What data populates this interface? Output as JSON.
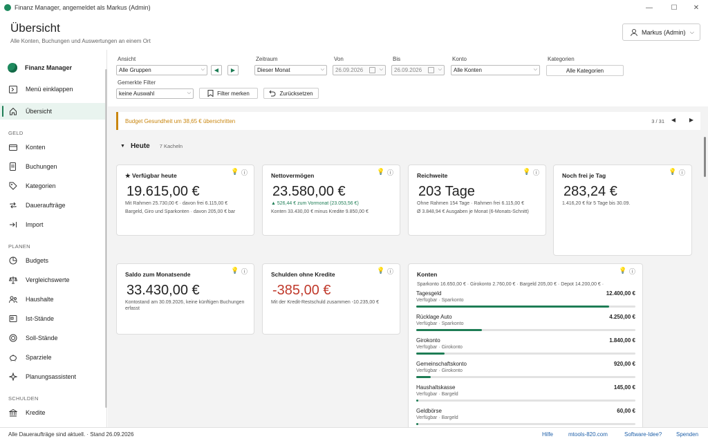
{
  "window": {
    "title": "Finanz Manager, angemeldet als Markus (Admin)"
  },
  "header": {
    "title": "Übersicht",
    "subtitle": "Alle Konten, Buchungen und Auswertungen an einem Ort",
    "user": "Markus (Admin)"
  },
  "sidebar": {
    "brand": "Finanz Manager",
    "collapse": "Menü einklappen",
    "overview": "Übersicht",
    "sections": {
      "geld": "GELD",
      "planen": "PLANEN",
      "schulden": "SCHULDEN"
    },
    "geld": [
      "Konten",
      "Buchungen",
      "Kategorien",
      "Daueraufträge",
      "Import"
    ],
    "planen": [
      "Budgets",
      "Vergleichswerte",
      "Haushalte",
      "Ist-Stände",
      "Soll-Stände",
      "Sparziele",
      "Planungsassistent"
    ],
    "schulden": [
      "Kredite"
    ]
  },
  "filters": {
    "ansicht_label": "Ansicht",
    "ansicht": "Alle Gruppen",
    "zeitraum_label": "Zeitraum",
    "zeitraum": "Dieser Monat",
    "von_label": "Von",
    "von": "26.09.2026",
    "bis_label": "Bis",
    "bis": "26.09.2026",
    "konto_label": "Konto",
    "konto": "Alle Konten",
    "kategorien_label": "Kategorien",
    "kategorien": "Alle Kategorien",
    "gemerkte_label": "Gemerkte Filter",
    "gemerkte": "keine Auswahl",
    "merken": "Filter merken",
    "reset": "Zurücksetzen"
  },
  "banner": {
    "text": "Budget Gesundheit um 38,65 € überschritten",
    "page": "3 / 31"
  },
  "section": {
    "title": "Heute",
    "count": "7 Kacheln"
  },
  "cards": {
    "verfuegbar": {
      "title": "★ Verfügbar heute",
      "value": "19.615,00 €",
      "line1": "Mit Rahmen 25.730,00 € · davon frei 6.115,00 €",
      "line2": "Bargeld, Giro und Sparkonten · davon 205,00 € bar"
    },
    "netto": {
      "title": "Nettovermögen",
      "value": "23.580,00 €",
      "line1": "▲ 526,44 € zum Vormonat (23.053,56 €)",
      "line2": "Konten 33.430,00 € minus Kredite 9.850,00 €"
    },
    "reichweite": {
      "title": "Reichweite",
      "value": "203 Tage",
      "line1": "Ohne Rahmen 154 Tage · Rahmen frei 6.115,00 €",
      "line2": "Ø 3.848,94 € Ausgaben je Monat (6-Monats-Schnitt)"
    },
    "frei": {
      "title": "Noch frei je Tag",
      "value": "283,24 €",
      "line1": "1.416,20 € für 5 Tage bis 30.09."
    },
    "saldo": {
      "title": "Saldo zum Monatsende",
      "value": "33.430,00 €",
      "line1": "Kontostand am 30.09.2026, keine künftigen Buchungen erfasst"
    },
    "schulden": {
      "title": "Schulden ohne Kredite",
      "value": "-385,00 €",
      "line1": "Mit der Kredit-Restschuld zusammen -10.235,00 €"
    },
    "konten": {
      "title": "Konten",
      "summary": "Sparkonto 16.650,00 € · Girokonto 2.760,00 € · Bargeld 205,00 € · Depot 14.200,00 € ·",
      "items": [
        {
          "name": "Tagesgeld",
          "sub": "Verfügbar · Sparkonto",
          "amount": "12.400,00 €",
          "share": 0.88
        },
        {
          "name": "Rücklage Auto",
          "sub": "Verfügbar · Sparkonto",
          "amount": "4.250,00 €",
          "share": 0.3
        },
        {
          "name": "Girokonto",
          "sub": "Verfügbar · Girokonto",
          "amount": "1.840,00 €",
          "share": 0.13
        },
        {
          "name": "Gemeinschaftskonto",
          "sub": "Verfügbar · Girokonto",
          "amount": "920,00 €",
          "share": 0.065
        },
        {
          "name": "Haushaltskasse",
          "sub": "Verfügbar · Bargeld",
          "amount": "145,00 €",
          "share": 0.01
        },
        {
          "name": "Geldbörse",
          "sub": "Verfügbar · Bargeld",
          "amount": "60,00 €",
          "share": 0.004
        }
      ]
    }
  },
  "status": {
    "text": "Alle Daueraufträge sind aktuell.  ·  Stand 26.09.2026",
    "links": [
      "Hilfe",
      "mtools-820.com",
      "Software-Idee?",
      "Spenden"
    ]
  },
  "colors": {
    "accent": "#1e7d55",
    "warning": "#c9860f",
    "negative": "#c0392b"
  }
}
